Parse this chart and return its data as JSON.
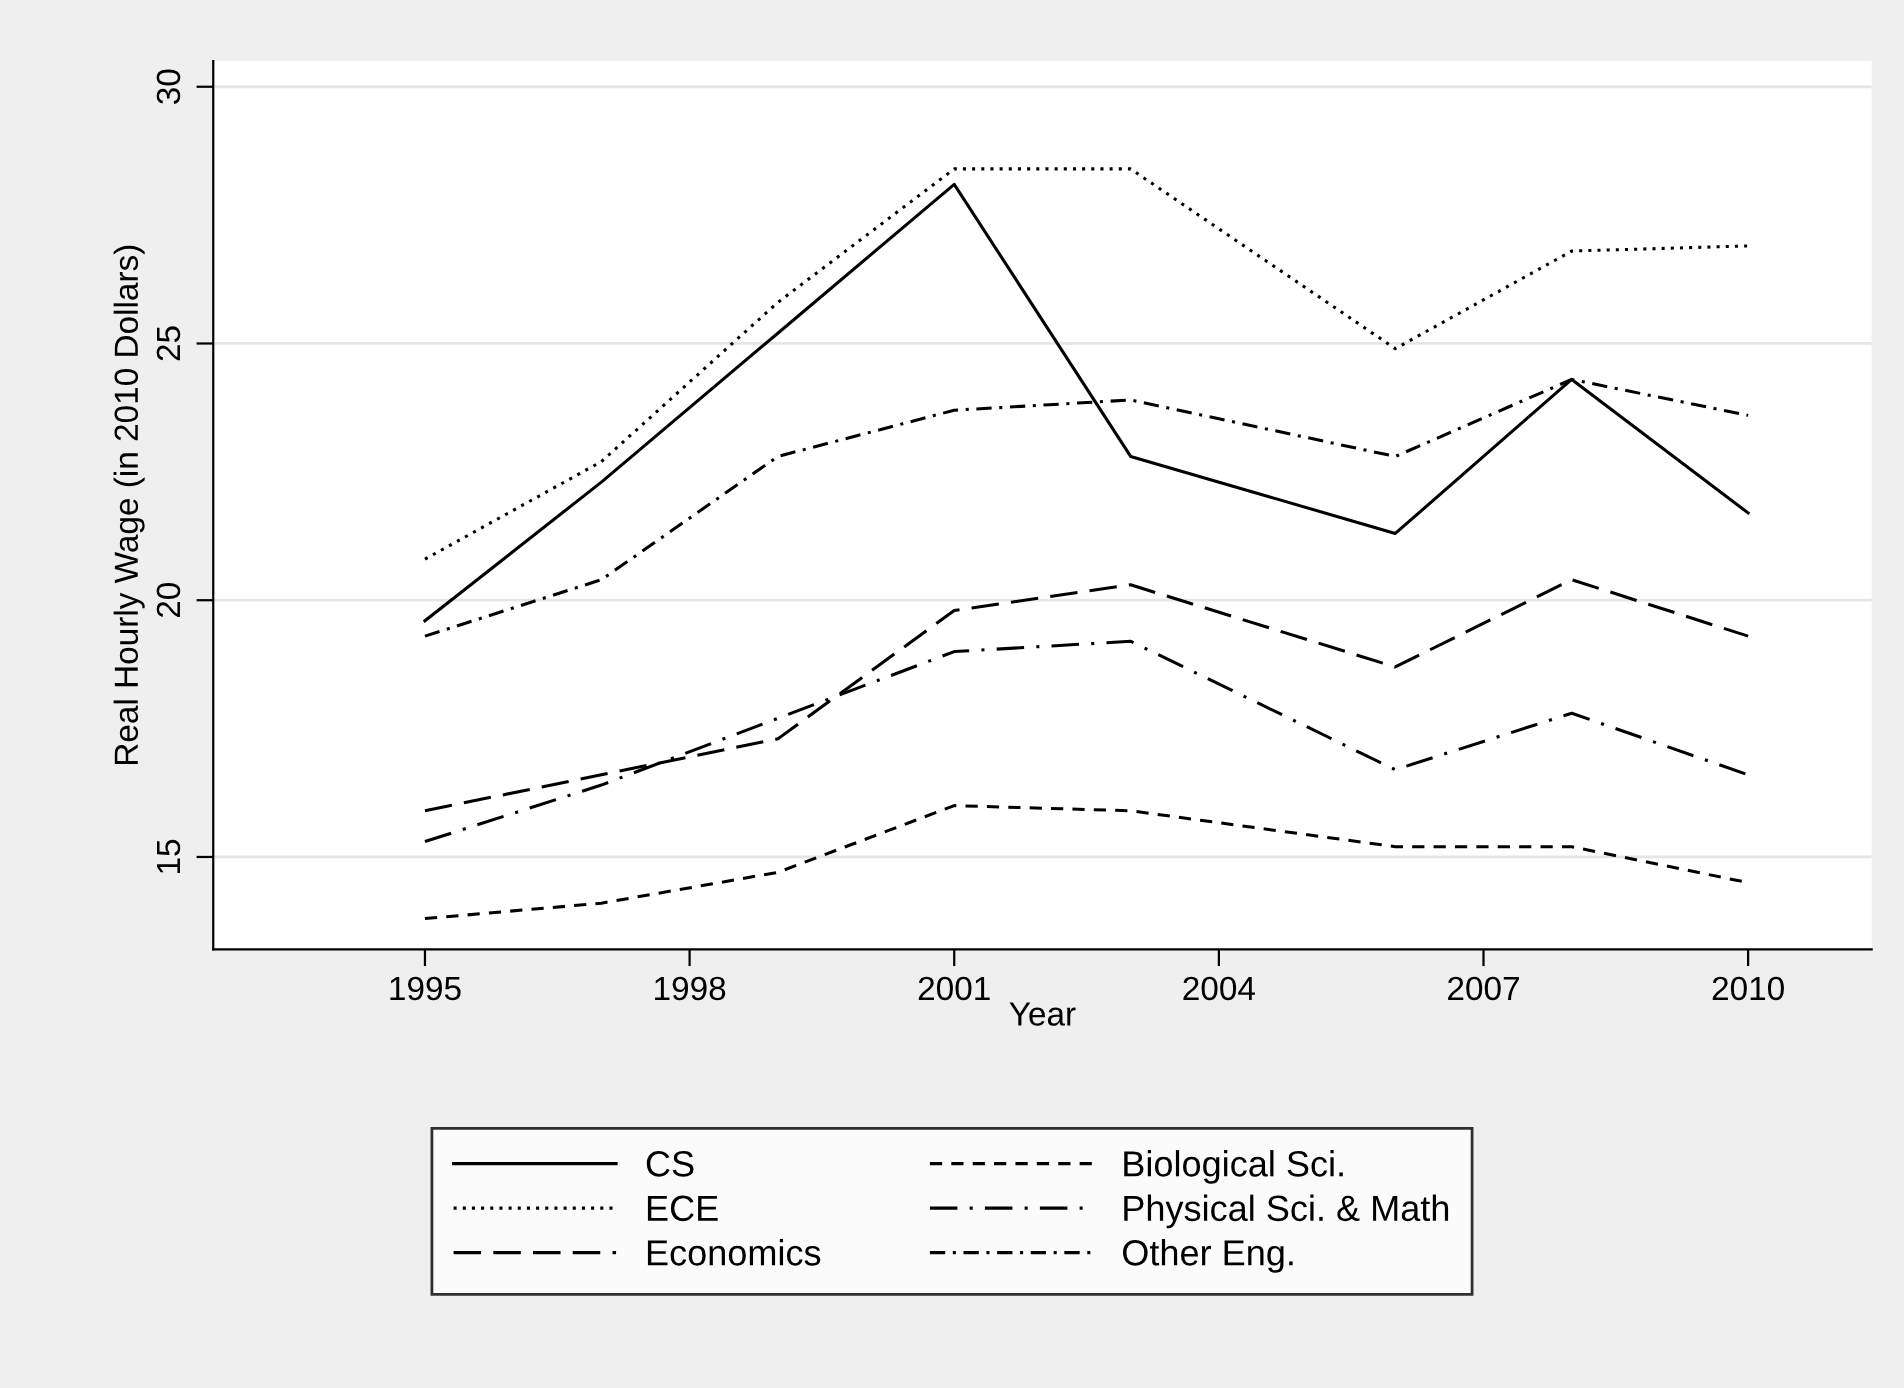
{
  "chart_data": {
    "type": "line",
    "xlabel": "Year",
    "ylabel": "Real Hourly Wage (in 2010 Dollars)",
    "x": [
      1995,
      1997,
      1999,
      2001,
      2003,
      2006,
      2008,
      2010
    ],
    "xlim": [
      1992.6,
      2011.4
    ],
    "xticks": [
      1995,
      1998,
      2001,
      2004,
      2007,
      2010
    ],
    "ylim": [
      13.2,
      30.5
    ],
    "yticks": [
      15,
      20,
      25,
      30
    ],
    "grid": "y",
    "legend": "bottom",
    "marker": "none",
    "series": [
      {
        "name": "CS",
        "color": "#000000",
        "line_style": "solid",
        "values": [
          19.6,
          22.3,
          25.2,
          28.1,
          22.8,
          21.3,
          24.3,
          21.7
        ]
      },
      {
        "name": "ECE",
        "color": "#000000",
        "line_style": "dotted",
        "values": [
          20.8,
          22.7,
          25.8,
          28.4,
          28.4,
          24.9,
          26.8,
          26.9
        ]
      },
      {
        "name": "Economics",
        "color": "#000000",
        "line_style": "longdash",
        "values": [
          15.9,
          16.6,
          17.3,
          19.8,
          20.3,
          18.7,
          20.4,
          19.3
        ]
      },
      {
        "name": "Biological Sci.",
        "color": "#000000",
        "line_style": "dashed",
        "values": [
          13.8,
          14.1,
          14.7,
          16.0,
          15.9,
          15.2,
          15.2,
          14.5
        ]
      },
      {
        "name": "Physical Sci. & Math",
        "color": "#000000",
        "line_style": "longdashdot",
        "values": [
          15.3,
          16.4,
          17.7,
          19.0,
          19.2,
          16.7,
          17.8,
          16.6
        ]
      },
      {
        "name": "Other Eng.",
        "color": "#000000",
        "line_style": "dashdot",
        "values": [
          19.3,
          20.4,
          22.8,
          23.7,
          23.9,
          22.8,
          24.3,
          23.6
        ]
      }
    ]
  }
}
